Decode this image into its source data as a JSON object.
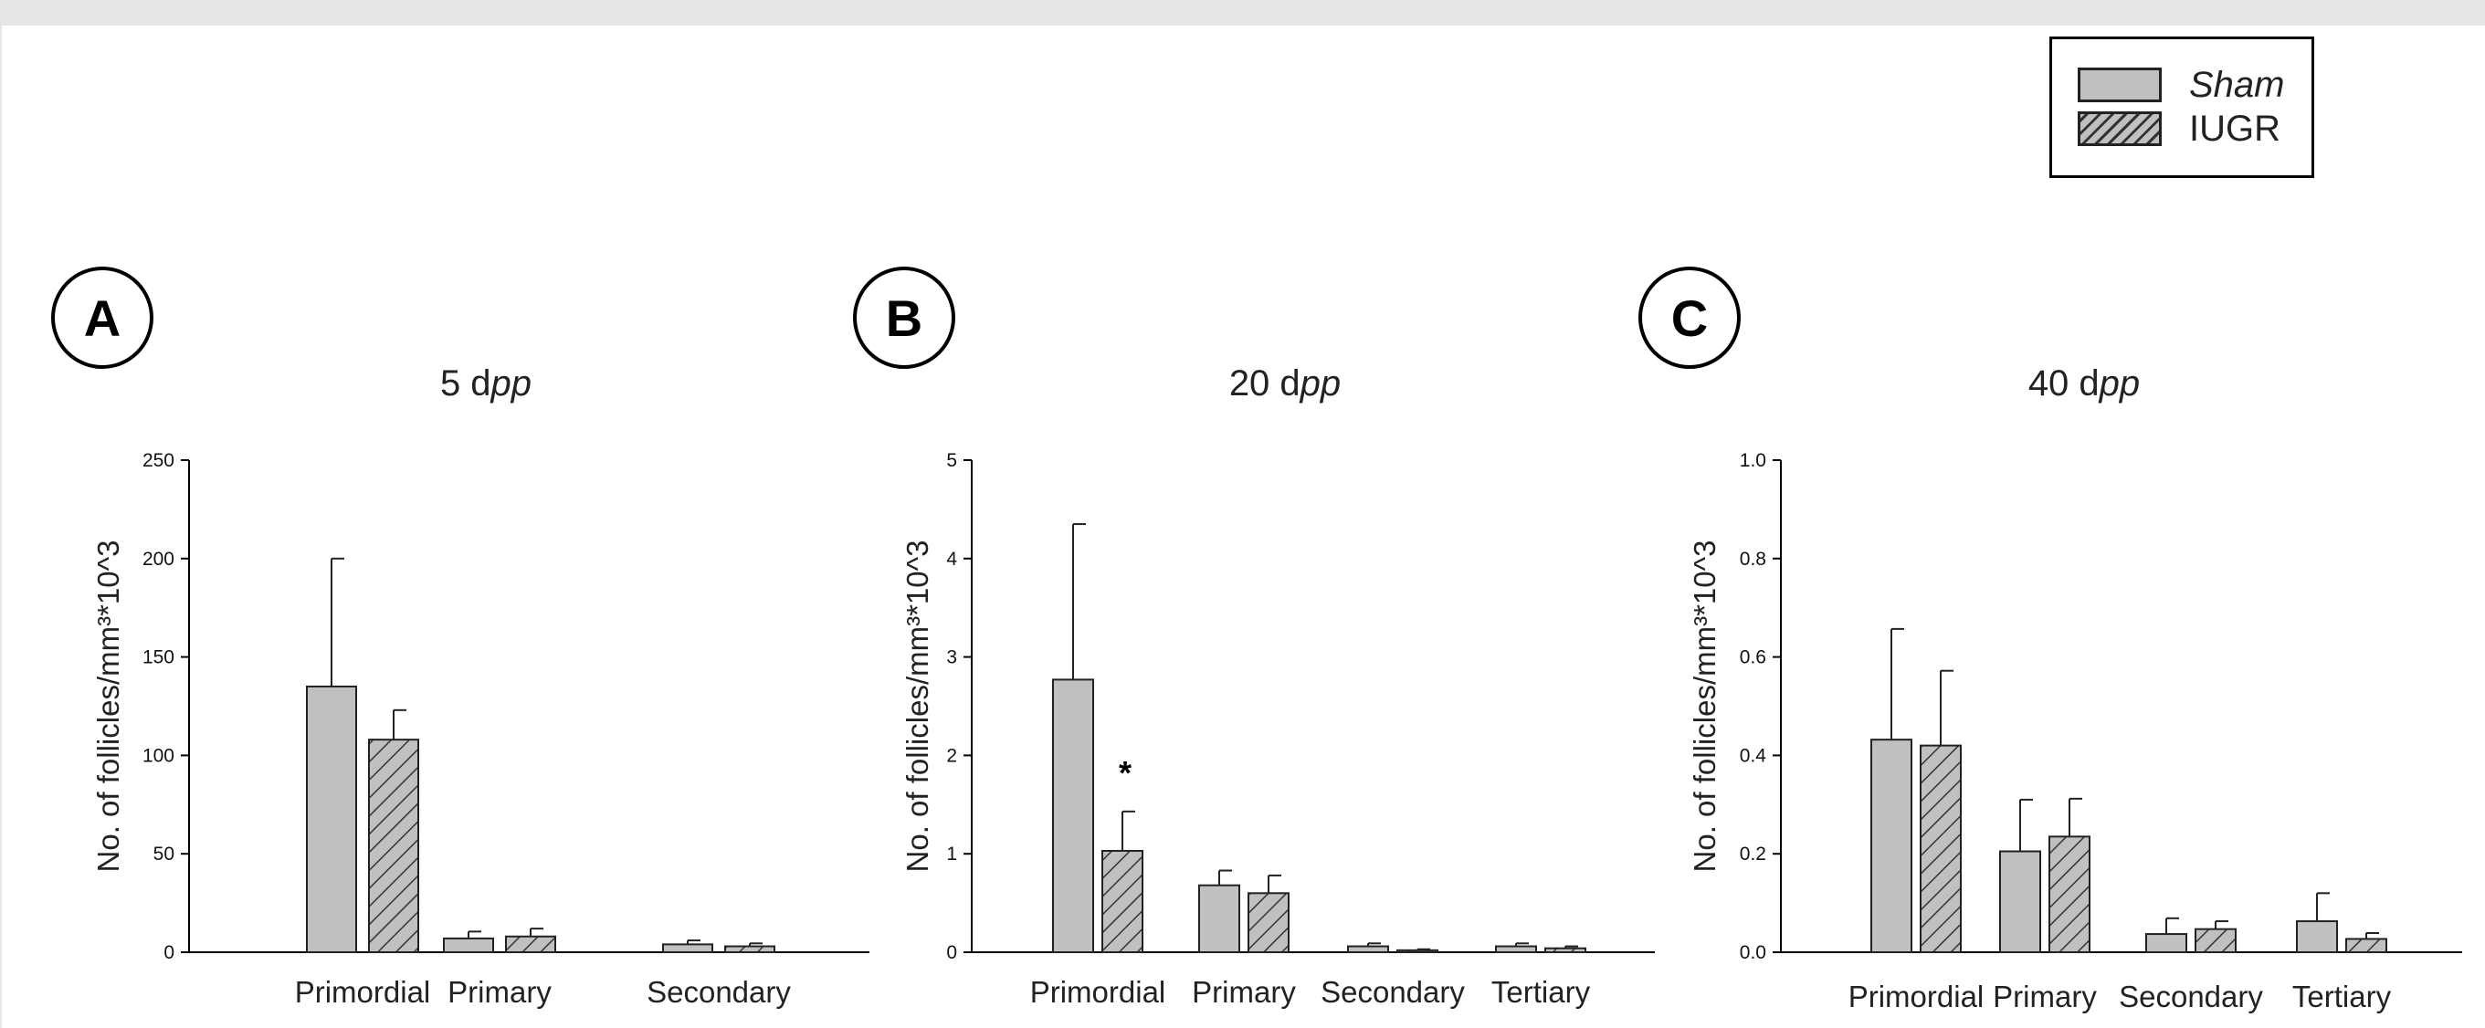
{
  "legend": {
    "items": [
      {
        "label": "Sham",
        "italic": true,
        "fill": "solid"
      },
      {
        "label": "IUGR",
        "italic": false,
        "fill": "hatched"
      }
    ]
  },
  "colors": {
    "bar_fill": "#c0c0c0",
    "hatch": "#333333",
    "axis": "#000000"
  },
  "chart_data": [
    {
      "type": "bar",
      "panel": "A",
      "title": {
        "prefix": "5 d",
        "italic": "pp"
      },
      "ylabel": "No. of follicles/mm³*10^3",
      "ylim": [
        0,
        250
      ],
      "yticks": [
        0,
        50,
        100,
        150,
        200,
        250
      ],
      "yticks_labels": [
        "0",
        "50",
        "100",
        "150",
        "200",
        "250"
      ],
      "categories": [
        "Primordial",
        "Primary",
        "Secondary"
      ],
      "series": [
        {
          "name": "Sham",
          "values": [
            135,
            7,
            4
          ],
          "errors": [
            65,
            3.5,
            2
          ]
        },
        {
          "name": "IUGR",
          "values": [
            108,
            8,
            3
          ],
          "errors": [
            15,
            4,
            1.5
          ]
        }
      ],
      "annotations": []
    },
    {
      "type": "bar",
      "panel": "B",
      "title": {
        "prefix": "20 d",
        "italic": "pp"
      },
      "ylabel": "No. of follicles/mm³*10^3",
      "ylim": [
        0,
        5
      ],
      "yticks": [
        0,
        1,
        2,
        3,
        4,
        5
      ],
      "yticks_labels": [
        "0",
        "1",
        "2",
        "3",
        "4",
        "5"
      ],
      "categories": [
        "Primordial",
        "Primary",
        "Secondary",
        "Tertiary"
      ],
      "series": [
        {
          "name": "Sham",
          "values": [
            2.77,
            0.68,
            0.06,
            0.06
          ],
          "errors": [
            1.58,
            0.15,
            0.03,
            0.03
          ]
        },
        {
          "name": "IUGR",
          "values": [
            1.03,
            0.6,
            0.02,
            0.04
          ],
          "errors": [
            0.4,
            0.18,
            0.01,
            0.02
          ]
        }
      ],
      "annotations": [
        {
          "text": "*",
          "category": "Primordial",
          "series": "IUGR"
        }
      ]
    },
    {
      "type": "bar",
      "panel": "C",
      "title": {
        "prefix": "40 d",
        "italic": "pp"
      },
      "ylabel": "No. of follicles/mm³*10^3",
      "ylim": [
        0,
        1.0
      ],
      "yticks": [
        0,
        0.2,
        0.4,
        0.6,
        0.8,
        1.0
      ],
      "yticks_labels": [
        "0.0",
        "0.2",
        "0.4",
        "0.6",
        "0.8",
        "1.0"
      ],
      "categories": [
        "Primordial",
        "Primary",
        "Secondary",
        "Tertiary"
      ],
      "series": [
        {
          "name": "Sham",
          "values": [
            0.432,
            0.205,
            0.037,
            0.063
          ],
          "errors": [
            0.225,
            0.105,
            0.032,
            0.057
          ]
        },
        {
          "name": "IUGR",
          "values": [
            0.42,
            0.235,
            0.047,
            0.027
          ],
          "errors": [
            0.152,
            0.077,
            0.016,
            0.012
          ]
        }
      ],
      "annotations": []
    }
  ]
}
